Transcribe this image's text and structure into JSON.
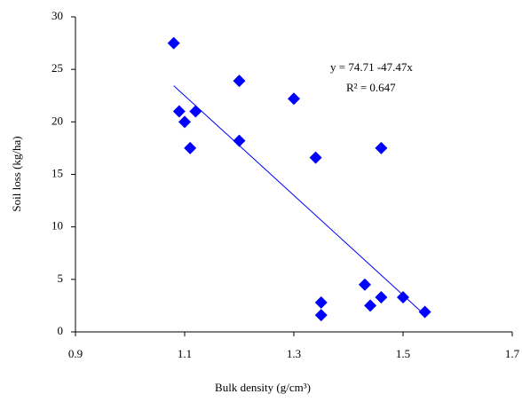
{
  "chart_data": {
    "type": "scatter",
    "x_label": "Bulk density (g/cm³)",
    "y_label": "Soil loss (kg/ha)",
    "series": [
      {
        "color": "#0000ff",
        "x": [
          1.08,
          1.09,
          1.1,
          1.12,
          1.11,
          1.2,
          1.2,
          1.3,
          1.34,
          1.46,
          1.35,
          1.35,
          1.43,
          1.44,
          1.46,
          1.5,
          1.54
        ],
        "values": [
          27.5,
          21.0,
          20.0,
          21.0,
          17.5,
          23.9,
          18.2,
          22.2,
          16.6,
          17.5,
          2.8,
          1.6,
          4.5,
          2.5,
          3.3,
          3.3,
          1.9
        ]
      }
    ],
    "trendline": {
      "color": "#0000ff",
      "x": [
        1.08,
        1.54
      ],
      "values": [
        23.44,
        1.61
      ],
      "equation": "y =  74.71 -47.47x",
      "r_squared": "R² = 0.647"
    },
    "xlim": [
      0.9,
      1.7
    ],
    "xticks": [
      0.9,
      1.1,
      1.3,
      1.5,
      1.7
    ],
    "ylim": [
      0,
      30
    ],
    "yticks": [
      0,
      5,
      10,
      15,
      20,
      25,
      30
    ],
    "grid": false
  }
}
